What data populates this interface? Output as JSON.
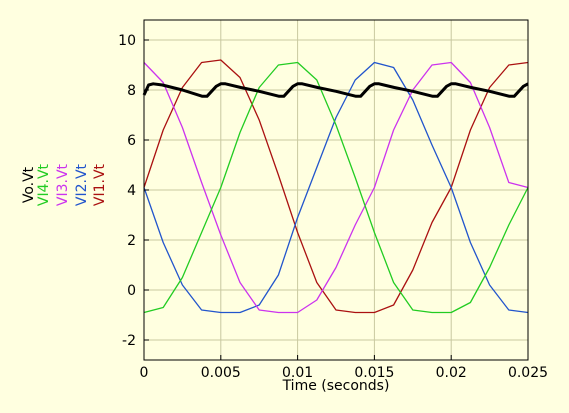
{
  "chart_data": {
    "type": "line",
    "title": "",
    "xlabel": "Time (seconds)",
    "ylabel": "",
    "xlim": [
      0,
      0.025
    ],
    "ylim": [
      -2.8,
      10.8
    ],
    "x_ticks": [
      "0",
      "0.005",
      "0.01",
      "0.015",
      "0.02",
      "0.025"
    ],
    "y_ticks": [
      "-2",
      "0",
      "2",
      "4",
      "6",
      "8",
      "10"
    ],
    "grid": true,
    "background": "#ffffe0",
    "plot_background": "#ffffe0",
    "grid_color": "#c8c8a0",
    "legend": {
      "placement": "left, rotated vertical labels",
      "entries": [
        {
          "label": "Vo.Vt",
          "color": "#000000"
        },
        {
          "label": "VI4.Vt",
          "color": "#22cc22"
        },
        {
          "label": "VI3.Vt",
          "color": "#cc33ee"
        },
        {
          "label": "VI2.Vt",
          "color": "#2255cc"
        },
        {
          "label": "VI1.Vt",
          "color": "#aa1111"
        }
      ]
    },
    "series": [
      {
        "name": "VI1.Vt",
        "color": "#aa1111",
        "x": [
          0,
          0.00125,
          0.0025,
          0.00375,
          0.005,
          0.00625,
          0.0075,
          0.00875,
          0.01,
          0.01125,
          0.0125,
          0.01375,
          0.015,
          0.01625,
          0.0175,
          0.01875,
          0.02,
          0.02125,
          0.0225,
          0.02375,
          0.025
        ],
        "y": [
          4.1,
          6.4,
          8.1,
          9.1,
          9.2,
          8.5,
          6.8,
          4.6,
          2.3,
          0.3,
          -0.8,
          -0.9,
          -0.9,
          -0.6,
          0.8,
          2.7,
          4.1,
          6.4,
          8.1,
          9.0,
          9.1
        ]
      },
      {
        "name": "VI2.Vt",
        "color": "#2255cc",
        "x": [
          0,
          0.00125,
          0.0025,
          0.00375,
          0.005,
          0.00625,
          0.0075,
          0.00875,
          0.01,
          0.01125,
          0.0125,
          0.01375,
          0.015,
          0.01625,
          0.0175,
          0.01875,
          0.02,
          0.02125,
          0.0225,
          0.02375,
          0.025
        ],
        "y": [
          4.1,
          1.9,
          0.2,
          -0.8,
          -0.9,
          -0.9,
          -0.6,
          0.6,
          2.9,
          4.9,
          6.9,
          8.4,
          9.1,
          8.9,
          7.6,
          5.8,
          4.1,
          1.9,
          0.2,
          -0.8,
          -0.9
        ]
      },
      {
        "name": "VI3.Vt",
        "color": "#cc33ee",
        "x": [
          0,
          0.00125,
          0.0025,
          0.00375,
          0.005,
          0.00625,
          0.0075,
          0.00875,
          0.01,
          0.01125,
          0.0125,
          0.01375,
          0.015,
          0.01625,
          0.0175,
          0.01875,
          0.02,
          0.02125,
          0.0225,
          0.02375,
          0.025
        ],
        "y": [
          9.1,
          8.3,
          6.5,
          4.3,
          2.2,
          0.3,
          -0.8,
          -0.9,
          -0.9,
          -0.4,
          0.9,
          2.6,
          4.1,
          6.4,
          8.0,
          9.0,
          9.1,
          8.3,
          6.5,
          4.3,
          4.1
        ]
      },
      {
        "name": "VI4.Vt",
        "color": "#22cc22",
        "x": [
          0,
          0.00125,
          0.0025,
          0.00375,
          0.005,
          0.00625,
          0.0075,
          0.00875,
          0.01,
          0.01125,
          0.0125,
          0.01375,
          0.015,
          0.01625,
          0.0175,
          0.01875,
          0.02,
          0.02125,
          0.0225,
          0.02375,
          0.025
        ],
        "y": [
          -0.9,
          -0.7,
          0.5,
          2.3,
          4.1,
          6.3,
          8.1,
          9.0,
          9.1,
          8.4,
          6.6,
          4.5,
          2.3,
          0.3,
          -0.8,
          -0.9,
          -0.9,
          -0.5,
          0.9,
          2.6,
          4.1
        ]
      },
      {
        "name": "Vo.Vt",
        "color": "#000000",
        "x": [
          0,
          0.0003,
          0.0006,
          0.0012,
          0.0025,
          0.0038,
          0.0041,
          0.0044,
          0.0047,
          0.005,
          0.0053,
          0.0063,
          0.0075,
          0.0088,
          0.0091,
          0.0094,
          0.0097,
          0.01,
          0.0103,
          0.0113,
          0.0125,
          0.0138,
          0.0141,
          0.0144,
          0.0147,
          0.015,
          0.0153,
          0.0163,
          0.0175,
          0.0188,
          0.0191,
          0.0194,
          0.0197,
          0.02,
          0.0203,
          0.0213,
          0.0225,
          0.0238,
          0.0241,
          0.0244,
          0.0247,
          0.025
        ],
        "y": [
          7.8,
          8.2,
          8.25,
          8.2,
          8.0,
          7.75,
          7.75,
          7.95,
          8.15,
          8.25,
          8.25,
          8.1,
          7.95,
          7.75,
          7.75,
          7.95,
          8.15,
          8.25,
          8.25,
          8.1,
          7.95,
          7.75,
          7.75,
          7.95,
          8.15,
          8.25,
          8.25,
          8.1,
          7.95,
          7.75,
          7.75,
          7.95,
          8.15,
          8.25,
          8.25,
          8.1,
          7.95,
          7.75,
          7.75,
          7.95,
          8.15,
          8.25
        ]
      }
    ]
  }
}
